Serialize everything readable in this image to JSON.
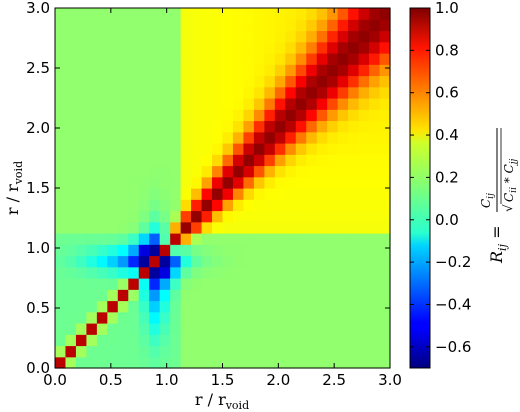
{
  "chart_data": {
    "type": "heatmap",
    "title": "",
    "xlabel": "r / r",
    "xlabel_sub": "void",
    "ylabel": "r / r",
    "ylabel_sub": "void",
    "xlim": [
      0.0,
      3.0
    ],
    "ylim": [
      0.0,
      3.0
    ],
    "x_ticks": [
      "0.0",
      "0.5",
      "1.0",
      "1.5",
      "2.0",
      "2.5",
      "3.0"
    ],
    "y_ticks": [
      "0.0",
      "0.5",
      "1.0",
      "1.5",
      "2.0",
      "2.5",
      "3.0"
    ],
    "grid": false,
    "colormap": "jet",
    "colorbar": {
      "range": [
        -0.7,
        1.0
      ],
      "ticks": [
        "1.0",
        "0.8",
        "0.6",
        "0.4",
        "0.2",
        "0.0",
        "−0.2",
        "−0.4",
        "−0.6"
      ],
      "label": "R_ij = C_ij / sqrt(C_ii * C_jj)"
    },
    "grid_n": 32,
    "description_values": {
      "diagonal": 1.0,
      "background_below_1": 0.15,
      "background_above_1": 0.3,
      "min_near_r_0.9": -0.65
    }
  }
}
